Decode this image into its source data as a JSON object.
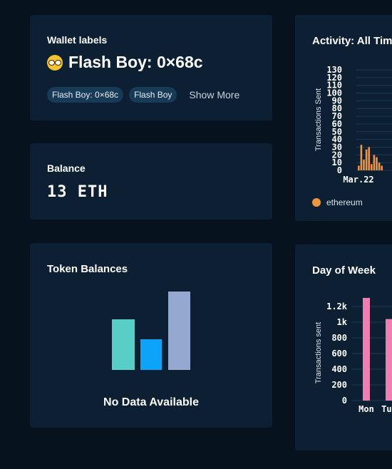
{
  "wallet": {
    "title": "Wallet labels",
    "name": "Flash Boy: 0×68c",
    "emoji_icon": "nerd-face-icon",
    "tags": [
      "Flash Boy: 0×68c",
      "Flash Boy"
    ],
    "show_more": "Show More"
  },
  "balance": {
    "title": "Balance",
    "value": "13 ETH"
  },
  "tokens": {
    "title": "Token Balances",
    "empty_text": "No Data Available",
    "placeholder_bar_colors": [
      "#58cfc6",
      "#0ba4f8",
      "#93a9cf"
    ]
  },
  "activity": {
    "title": "Activity: All Time",
    "legend": "ethereum",
    "color": "#f0953f"
  },
  "day_of_week": {
    "title": "Day of Week",
    "color": "#ee7fb0"
  },
  "chart_data": [
    {
      "type": "bar",
      "title": "Activity: All Time",
      "ylabel": "Transactions Sent",
      "ylim": [
        0,
        130
      ],
      "yticks": [
        0,
        10,
        20,
        30,
        40,
        50,
        60,
        70,
        80,
        90,
        100,
        110,
        120,
        130
      ],
      "xtick_labels": [
        "Mar.22"
      ],
      "series": [
        {
          "name": "ethereum",
          "values": [
            6,
            33,
            14,
            27,
            30,
            8,
            20,
            17,
            10,
            6,
            15,
            29,
            24
          ]
        }
      ],
      "legend_position": "bottom-left"
    },
    {
      "type": "bar",
      "title": "Day of Week",
      "ylabel": "Transactions sent",
      "ylim": [
        0,
        1300
      ],
      "ytick_labels": [
        "0",
        "200",
        "400",
        "600",
        "800",
        "1k",
        "1.2k"
      ],
      "yticks": [
        0,
        200,
        400,
        600,
        800,
        1000,
        1200
      ],
      "categories": [
        "Mon",
        "Tue"
      ],
      "values": [
        1310,
        1040
      ]
    }
  ]
}
